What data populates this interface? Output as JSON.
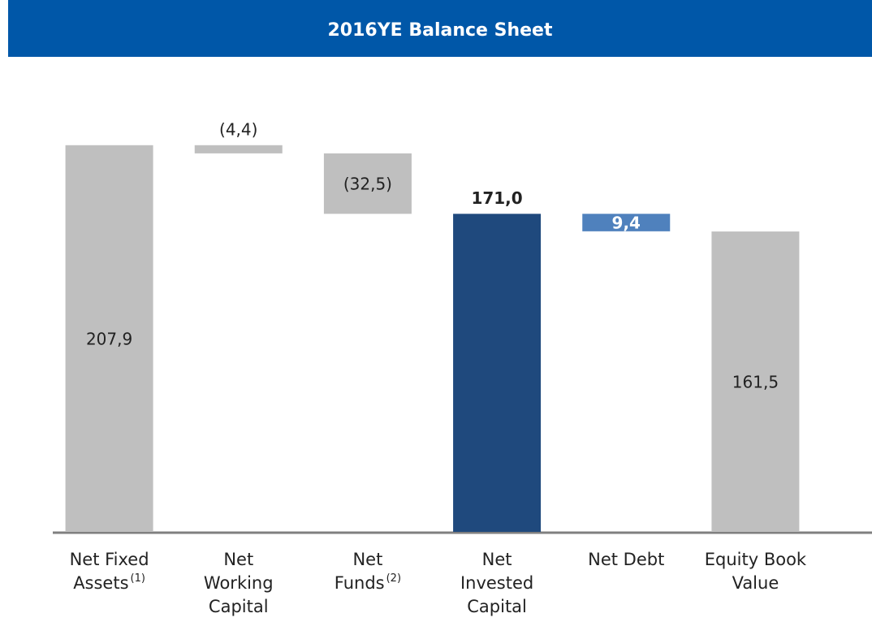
{
  "chart_data": {
    "type": "waterfall",
    "title": "2016YE Balance Sheet",
    "categories": [
      [
        "Net Fixed",
        "Assets"
      ],
      [
        "Net",
        "Working",
        "Capital"
      ],
      [
        "Net",
        "Funds"
      ],
      [
        "Net",
        "Invested",
        "Capital"
      ],
      [
        "Net Debt"
      ],
      [
        "Equity Book",
        "Value"
      ]
    ],
    "footnotes": [
      "(1)",
      null,
      "(2)",
      null,
      null,
      null
    ],
    "measures": [
      "total",
      "delta",
      "delta",
      "total",
      "subtract",
      "total"
    ],
    "values": [
      207.9,
      -4.4,
      -32.5,
      171.0,
      9.4,
      161.5
    ],
    "value_labels": [
      "207,9",
      "(4,4)",
      "(32,5)",
      "171,0",
      "9,4",
      "161,5"
    ],
    "colors": [
      "#bfbfbf",
      "#bfbfbf",
      "#bfbfbf",
      "#1f497d",
      "#4f81bd",
      "#bfbfbf"
    ],
    "ylim": [
      0,
      210
    ]
  }
}
